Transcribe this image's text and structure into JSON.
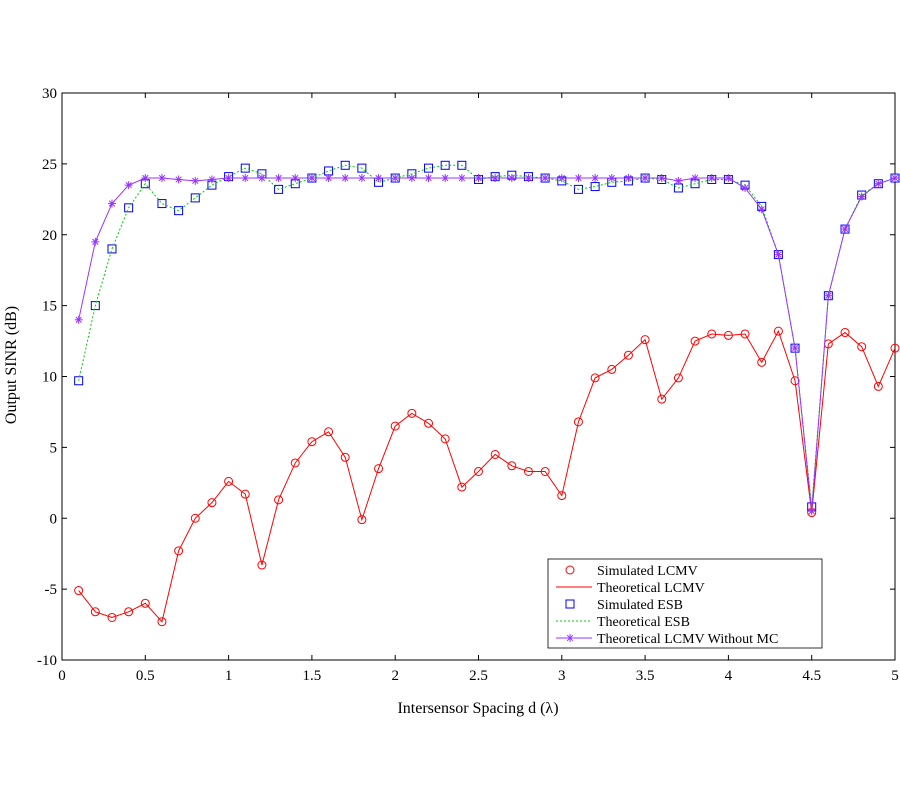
{
  "chart_data": {
    "type": "line",
    "title": "",
    "xlabel": "Intersensor Spacing d (λ)",
    "ylabel": "Output SINR (dB)",
    "xlim": [
      0,
      5
    ],
    "ylim": [
      -10,
      30
    ],
    "xticks": [
      0,
      0.5,
      1,
      1.5,
      2,
      2.5,
      3,
      3.5,
      4,
      4.5,
      5
    ],
    "xtick_labels": [
      "0",
      "0.5",
      "1",
      "1.5",
      "2",
      "2.5",
      "3",
      "3.5",
      "4",
      "4.5",
      "5"
    ],
    "yticks": [
      -10,
      -5,
      0,
      5,
      10,
      15,
      20,
      25,
      30
    ],
    "ytick_labels": [
      "-10",
      "-5",
      "0",
      "5",
      "10",
      "15",
      "20",
      "25",
      "30"
    ],
    "grid": false,
    "legend_position": "bottom-right",
    "x": [
      0.1,
      0.2,
      0.3,
      0.4,
      0.5,
      0.6,
      0.7,
      0.8,
      0.9,
      1.0,
      1.1,
      1.2,
      1.3,
      1.4,
      1.5,
      1.6,
      1.7,
      1.8,
      1.9,
      2.0,
      2.1,
      2.2,
      2.3,
      2.4,
      2.5,
      2.6,
      2.7,
      2.8,
      2.9,
      3.0,
      3.1,
      3.2,
      3.3,
      3.4,
      3.5,
      3.6,
      3.7,
      3.8,
      3.9,
      4.0,
      4.1,
      4.2,
      4.3,
      4.4,
      4.5,
      4.6,
      4.7,
      4.8,
      4.9,
      5.0
    ],
    "series": [
      {
        "name": "Simulated LCMV",
        "style": "marker-circle",
        "color": "#ff0000",
        "values": [
          -5.1,
          -6.6,
          -7.0,
          -6.6,
          -6.0,
          -7.3,
          -2.3,
          0.0,
          1.1,
          2.6,
          1.7,
          -3.3,
          1.3,
          3.9,
          5.4,
          6.1,
          4.3,
          -0.1,
          3.5,
          6.5,
          7.4,
          6.7,
          5.6,
          2.2,
          3.3,
          4.5,
          3.7,
          3.3,
          3.3,
          1.6,
          6.8,
          9.9,
          10.5,
          11.5,
          12.6,
          8.4,
          9.9,
          12.5,
          13.0,
          12.9,
          13.0,
          11.0,
          13.2,
          9.7,
          0.4,
          12.3,
          13.1,
          12.1,
          9.3,
          12.0
        ]
      },
      {
        "name": "Theoretical LCMV",
        "style": "line-solid",
        "color": "#ff0000",
        "values": [
          -5.1,
          -6.6,
          -7.0,
          -6.6,
          -6.0,
          -7.3,
          -2.3,
          0.0,
          1.1,
          2.6,
          1.7,
          -3.3,
          1.3,
          3.9,
          5.4,
          6.1,
          4.3,
          -0.1,
          3.5,
          6.5,
          7.4,
          6.7,
          5.6,
          2.2,
          3.3,
          4.5,
          3.7,
          3.3,
          3.3,
          1.6,
          6.8,
          9.9,
          10.5,
          11.5,
          12.6,
          8.4,
          9.9,
          12.5,
          13.0,
          12.9,
          13.0,
          11.0,
          13.2,
          9.7,
          0.4,
          12.3,
          13.1,
          12.1,
          9.3,
          12.0
        ]
      },
      {
        "name": "Simulated ESB",
        "style": "marker-square",
        "color": "#0000ff",
        "values": [
          9.7,
          15.0,
          19.0,
          21.9,
          23.6,
          22.2,
          21.7,
          22.6,
          23.5,
          24.1,
          24.7,
          24.3,
          23.2,
          23.6,
          24.0,
          24.5,
          24.9,
          24.7,
          23.7,
          24.0,
          24.3,
          24.7,
          24.9,
          24.9,
          23.9,
          24.1,
          24.2,
          24.1,
          24.0,
          23.8,
          23.2,
          23.4,
          23.7,
          23.8,
          24.0,
          23.9,
          23.3,
          23.6,
          23.9,
          23.9,
          23.5,
          22.0,
          18.6,
          12.0,
          0.8,
          15.7,
          20.4,
          22.8,
          23.6,
          24.0
        ]
      },
      {
        "name": "Theoretical ESB",
        "style": "line-dotted",
        "color": "#00cc00",
        "values": [
          9.7,
          15.0,
          19.0,
          21.9,
          23.6,
          22.2,
          21.7,
          22.6,
          23.5,
          24.1,
          24.7,
          24.3,
          23.2,
          23.6,
          24.0,
          24.5,
          24.9,
          24.7,
          23.7,
          24.0,
          24.3,
          24.7,
          24.9,
          24.9,
          23.9,
          24.1,
          24.2,
          24.1,
          24.0,
          23.8,
          23.2,
          23.4,
          23.7,
          23.8,
          24.0,
          23.9,
          23.3,
          23.6,
          23.9,
          23.9,
          23.5,
          22.0,
          18.6,
          12.0,
          0.8,
          15.7,
          20.4,
          22.8,
          23.6,
          24.0
        ]
      },
      {
        "name": "Theoretical LCMV Without MC",
        "style": "line-star",
        "color": "#9933ff",
        "values": [
          14.0,
          19.5,
          22.2,
          23.5,
          24.0,
          24.0,
          23.9,
          23.8,
          23.9,
          24.0,
          24.0,
          24.0,
          24.0,
          24.0,
          24.0,
          24.0,
          24.0,
          24.0,
          24.0,
          24.0,
          24.0,
          24.0,
          24.0,
          24.0,
          24.0,
          24.0,
          24.0,
          24.0,
          24.0,
          24.0,
          24.0,
          24.0,
          24.0,
          24.0,
          24.0,
          24.0,
          23.8,
          24.0,
          24.0,
          24.0,
          23.3,
          21.8,
          18.6,
          12.0,
          0.5,
          15.7,
          20.4,
          22.7,
          23.6,
          24.0
        ]
      }
    ]
  }
}
